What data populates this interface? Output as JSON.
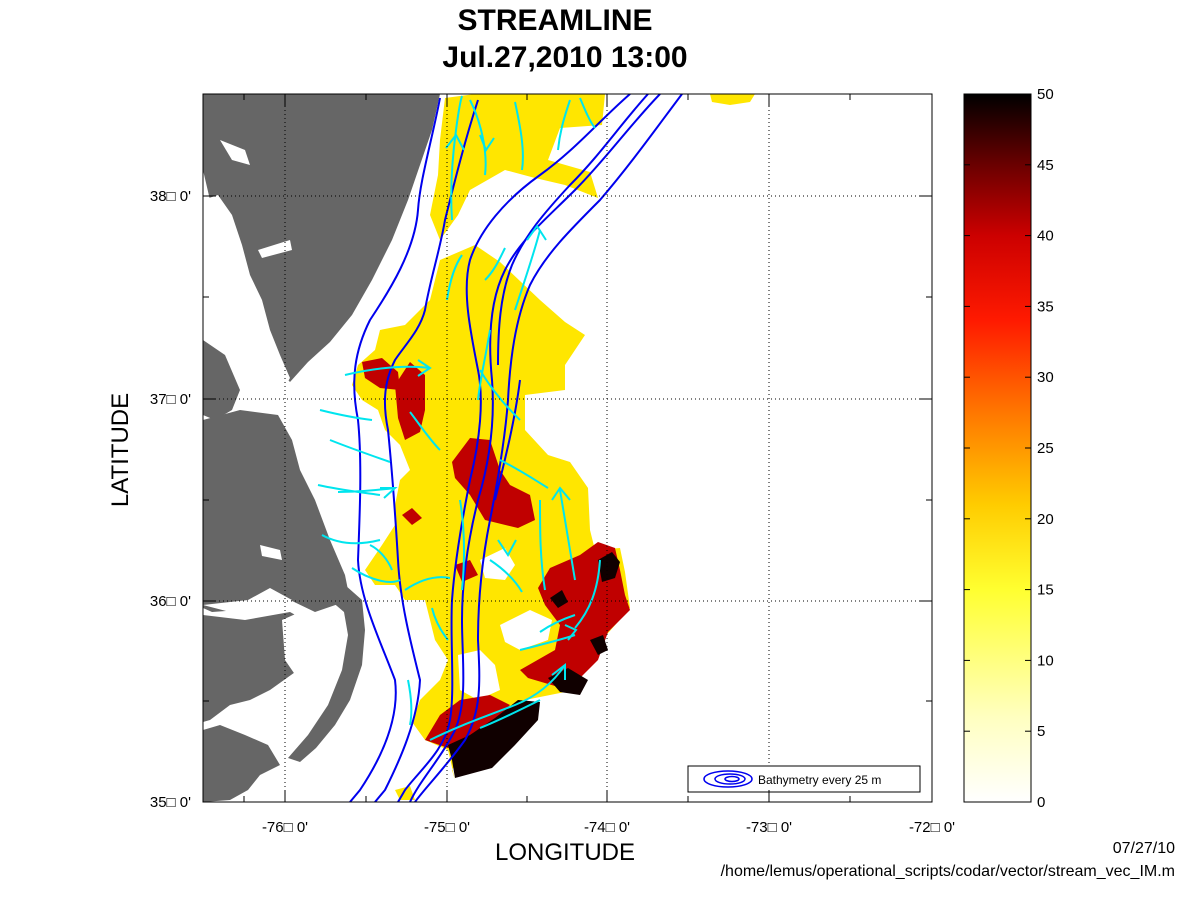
{
  "title_line1": "STREAMLINE",
  "title_line2": "Jul.27,2010 13:00",
  "xlabel": "LONGITUDE",
  "ylabel": "LATITUDE",
  "legend_label": "Bathymetry every 25 m",
  "footer_date": "07/27/10",
  "footer_path": "/home/lemus/operational_scripts/codar/vector/stream_vec_IM.m",
  "map": {
    "lon_range": [
      -76.5,
      -72.0
    ],
    "lat_range": [
      35.0,
      38.5
    ],
    "land_color": "#666666",
    "bathymetry_color": "#0000ee",
    "streamline_color": "#00e5ee",
    "grid": true,
    "legend_position": "bottom-right"
  },
  "x_ticks": [
    "-76□ 0'",
    "-75□ 0'",
    "-74□ 0'",
    "-73□ 0'",
    "-72□ 0'"
  ],
  "y_ticks": [
    "35□ 0'",
    "36□ 0'",
    "37□ 0'",
    "38□ 0'"
  ],
  "colorbar": {
    "min": 0,
    "max": 50,
    "colormap": "hot (reversed)",
    "tick_labels": [
      "0",
      "5",
      "10",
      "15",
      "20",
      "25",
      "30",
      "35",
      "40",
      "45",
      "50"
    ]
  }
}
